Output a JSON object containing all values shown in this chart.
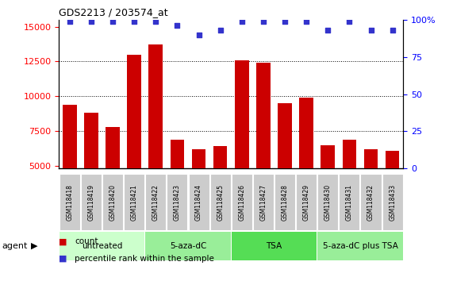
{
  "title": "GDS2213 / 203574_at",
  "categories": [
    "GSM118418",
    "GSM118419",
    "GSM118420",
    "GSM118421",
    "GSM118422",
    "GSM118423",
    "GSM118424",
    "GSM118425",
    "GSM118426",
    "GSM118427",
    "GSM118428",
    "GSM118429",
    "GSM118430",
    "GSM118431",
    "GSM118432",
    "GSM118433"
  ],
  "counts": [
    9400,
    8800,
    7800,
    13000,
    13700,
    6850,
    6200,
    6400,
    12600,
    12400,
    9500,
    9900,
    6500,
    6900,
    6200,
    6050
  ],
  "percentiles": [
    99,
    99,
    99,
    99,
    99,
    96,
    90,
    93,
    99,
    99,
    99,
    99,
    93,
    99,
    93,
    93
  ],
  "bar_color": "#cc0000",
  "dot_color": "#3333cc",
  "ylim_left": [
    4800,
    15500
  ],
  "ylim_right": [
    0,
    100
  ],
  "yticks_left": [
    5000,
    7500,
    10000,
    12500,
    15000
  ],
  "yticks_right": [
    0,
    25,
    50,
    75,
    100
  ],
  "grid_lines": [
    7500,
    10000,
    12500
  ],
  "groups": [
    {
      "label": "untreated",
      "start": 0,
      "end": 4,
      "color": "#ccffcc"
    },
    {
      "label": "5-aza-dC",
      "start": 4,
      "end": 8,
      "color": "#99ee99"
    },
    {
      "label": "TSA",
      "start": 8,
      "end": 12,
      "color": "#55dd55"
    },
    {
      "label": "5-aza-dC plus TSA",
      "start": 12,
      "end": 16,
      "color": "#99ee99"
    }
  ],
  "agent_label": "agent",
  "legend_count_label": "count",
  "legend_pct_label": "percentile rank within the sample",
  "xtick_bg": "#cccccc",
  "plot_bg": "#ffffff",
  "fig_bg": "#ffffff"
}
